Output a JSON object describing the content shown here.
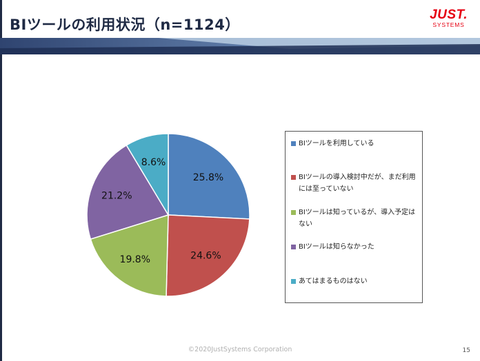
{
  "slide": {
    "title": "BIツールの利用状況（n=1124）",
    "logo_main": "JUST.",
    "logo_sub": "SYSTEMS",
    "footer": "©2020JustSystems Corporation",
    "page_number": "15"
  },
  "colors": {
    "brand_red": "#e60012",
    "title_navy": "#1f2a44",
    "band_dark": "#2f4470",
    "band_light": "#a7bfd9"
  },
  "chart_data": {
    "type": "pie",
    "title": "",
    "slices": [
      {
        "label": "BIツールを利用している",
        "value": 25.8,
        "display": "25.8%",
        "color": "#4f81bd"
      },
      {
        "label": "BIツールの導入検討中だが、まだ利用には至っていない",
        "value": 24.6,
        "display": "24.6%",
        "color": "#c0504d"
      },
      {
        "label": "BIツールは知っているが、導入予定はない",
        "value": 19.8,
        "display": "19.8%",
        "color": "#9bbb59"
      },
      {
        "label": "BIツールは知らなかった",
        "value": 21.2,
        "display": "21.2%",
        "color": "#8064a2"
      },
      {
        "label": "あてはまるものはない",
        "value": 8.6,
        "display": "8.6%",
        "color": "#4bacc6"
      }
    ],
    "start": "12 o'clock",
    "direction": "clockwise",
    "legend_placement": "right"
  }
}
